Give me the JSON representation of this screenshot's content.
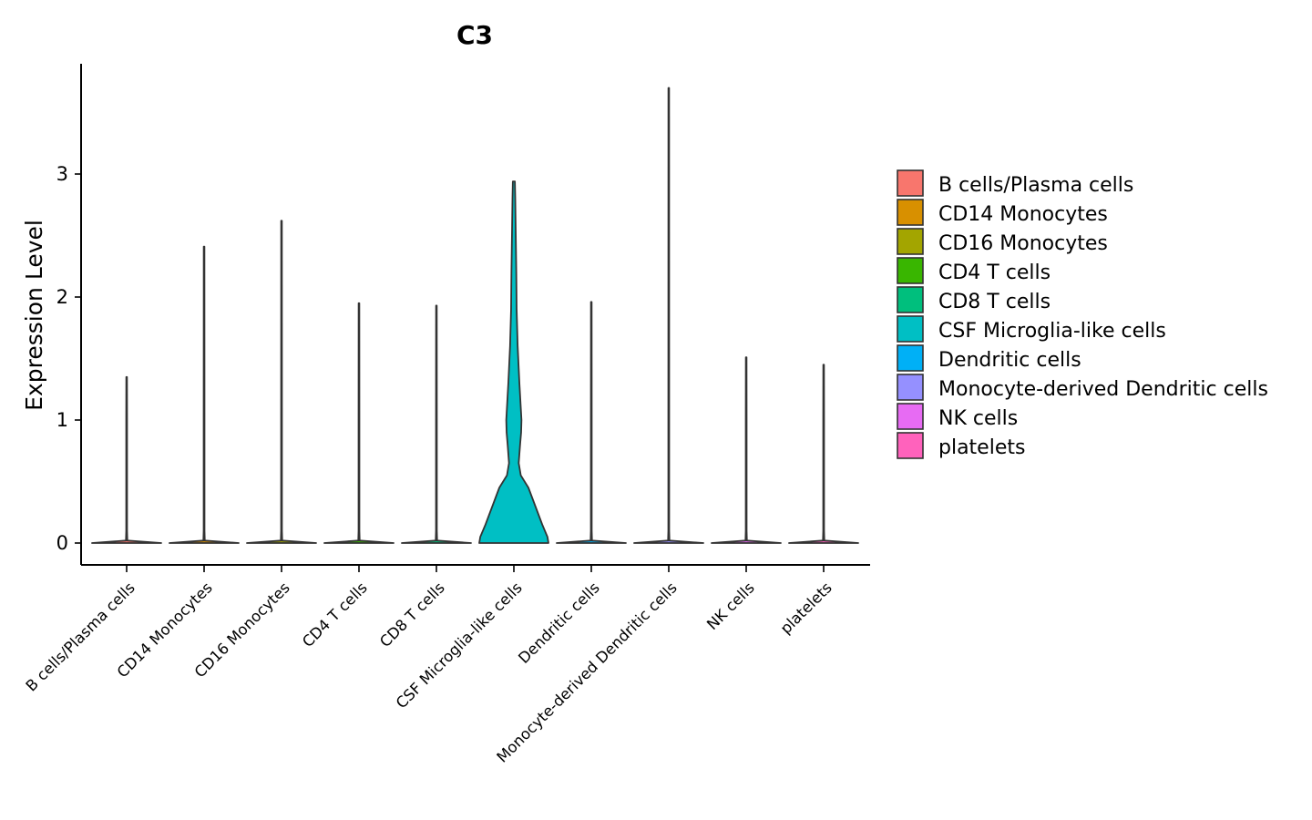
{
  "chart_data": {
    "type": "violin",
    "title": "C3",
    "xlabel": "",
    "ylabel": "Expression Level",
    "ylim": [
      -0.18,
      3.9
    ],
    "yticks": [
      0,
      1,
      2,
      3
    ],
    "categories": [
      "B cells/Plasma cells",
      "CD14 Monocytes",
      "CD16 Monocytes",
      "CD4 T cells",
      "CD8 T cells",
      "CSF Microglia-like cells",
      "Dendritic cells",
      "Monocyte-derived Dendritic cells",
      "NK cells",
      "platelets"
    ],
    "max_values": [
      1.35,
      2.41,
      2.62,
      1.95,
      1.93,
      2.94,
      1.96,
      3.7,
      1.51,
      1.45
    ],
    "colors": [
      "#F8766D",
      "#D89000",
      "#A3A500",
      "#39B600",
      "#00BF7D",
      "#00BFC4",
      "#00B0F6",
      "#9590FF",
      "#E76BF3",
      "#FF62BC"
    ],
    "density_profiles": [
      [
        [
          0,
          1.0
        ],
        [
          0.02,
          0.02
        ],
        [
          0.1,
          0.012
        ],
        [
          0.5,
          0.012
        ],
        [
          1,
          0.012
        ],
        [
          1.35,
          0.01
        ]
      ],
      [
        [
          0,
          1.0
        ],
        [
          0.02,
          0.02
        ],
        [
          0.1,
          0.012
        ],
        [
          1,
          0.012
        ],
        [
          2.41,
          0.01
        ]
      ],
      [
        [
          0,
          1.0
        ],
        [
          0.02,
          0.02
        ],
        [
          0.1,
          0.012
        ],
        [
          1,
          0.012
        ],
        [
          2.62,
          0.01
        ]
      ],
      [
        [
          0,
          1.0
        ],
        [
          0.02,
          0.02
        ],
        [
          0.1,
          0.012
        ],
        [
          1,
          0.012
        ],
        [
          1.95,
          0.01
        ]
      ],
      [
        [
          0,
          1.0
        ],
        [
          0.02,
          0.02
        ],
        [
          0.1,
          0.012
        ],
        [
          1,
          0.012
        ],
        [
          1.93,
          0.01
        ]
      ],
      [
        [
          0,
          1.0
        ],
        [
          0.05,
          0.97
        ],
        [
          0.15,
          0.82
        ],
        [
          0.3,
          0.62
        ],
        [
          0.45,
          0.42
        ],
        [
          0.55,
          0.2
        ],
        [
          0.65,
          0.14
        ],
        [
          0.8,
          0.18
        ],
        [
          0.9,
          0.21
        ],
        [
          1.0,
          0.22
        ],
        [
          1.1,
          0.2
        ],
        [
          1.3,
          0.16
        ],
        [
          1.6,
          0.11
        ],
        [
          1.9,
          0.08
        ],
        [
          2.2,
          0.07
        ],
        [
          2.4,
          0.06
        ],
        [
          2.6,
          0.05
        ],
        [
          2.8,
          0.04
        ],
        [
          2.94,
          0.03
        ]
      ],
      [
        [
          0,
          1.0
        ],
        [
          0.02,
          0.02
        ],
        [
          0.1,
          0.012
        ],
        [
          1,
          0.012
        ],
        [
          1.96,
          0.01
        ]
      ],
      [
        [
          0,
          1.0
        ],
        [
          0.02,
          0.02
        ],
        [
          0.1,
          0.012
        ],
        [
          1,
          0.012
        ],
        [
          3.7,
          0.01
        ]
      ],
      [
        [
          0,
          1.0
        ],
        [
          0.02,
          0.02
        ],
        [
          0.1,
          0.012
        ],
        [
          1,
          0.012
        ],
        [
          1.51,
          0.01
        ]
      ],
      [
        [
          0,
          1.0
        ],
        [
          0.02,
          0.02
        ],
        [
          0.1,
          0.012
        ],
        [
          1,
          0.012
        ],
        [
          1.45,
          0.01
        ]
      ]
    ],
    "legend": {
      "position": "right",
      "entries": [
        "B cells/Plasma cells",
        "CD14 Monocytes",
        "CD16 Monocytes",
        "CD4 T cells",
        "CD8 T cells",
        "CSF Microglia-like cells",
        "Dendritic cells",
        "Monocyte-derived Dendritic cells",
        "NK cells",
        "platelets"
      ]
    },
    "grid": false
  }
}
